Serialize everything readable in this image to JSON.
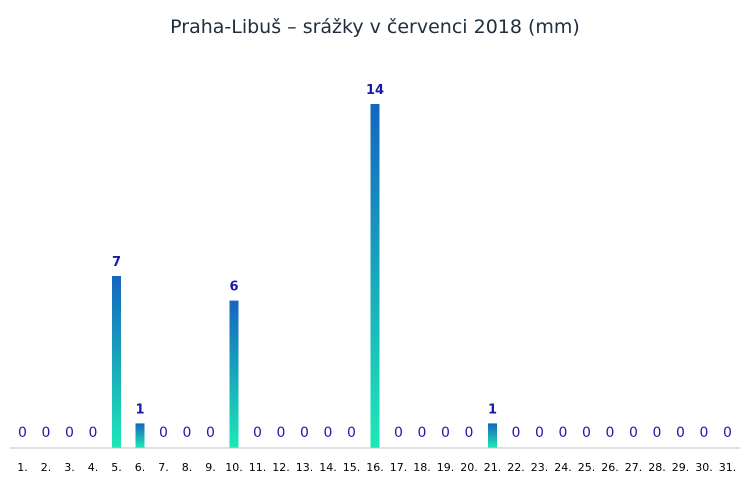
{
  "chart_data": {
    "type": "bar",
    "title": "Praha-Libuš – srážky v červenci 2018 (mm)",
    "xlabel": "",
    "ylabel": "",
    "categories": [
      "1.",
      "2.",
      "3.",
      "4.",
      "5.",
      "6.",
      "7.",
      "8.",
      "9.",
      "10.",
      "11.",
      "12.",
      "13.",
      "14.",
      "15.",
      "16.",
      "17.",
      "18.",
      "19.",
      "20.",
      "21.",
      "22.",
      "23.",
      "24.",
      "25.",
      "26.",
      "27.",
      "28.",
      "29.",
      "30.",
      "31."
    ],
    "values": [
      0,
      0,
      0,
      0,
      7,
      1,
      0,
      0,
      0,
      6,
      0,
      0,
      0,
      0,
      0,
      14,
      0,
      0,
      0,
      0,
      1,
      0,
      0,
      0,
      0,
      0,
      0,
      0,
      0,
      0,
      0
    ],
    "ylim": [
      0,
      14
    ],
    "grid": false,
    "legend": "none",
    "data_labels": true,
    "colors": {
      "bar_top": "#1565c0",
      "bar_bottom": "#1de9b6",
      "label": "#1a1aa8",
      "axis": "#bfbfbf"
    }
  }
}
